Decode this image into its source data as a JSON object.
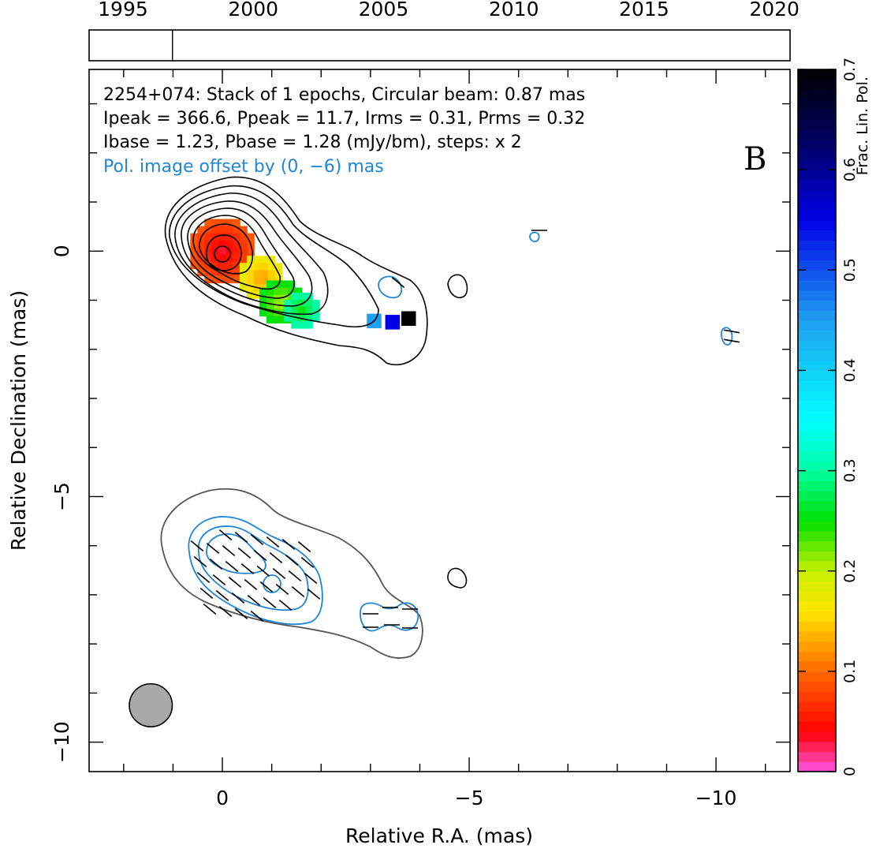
{
  "chart_data": {
    "type": "heatmap",
    "title": "",
    "annotations": {
      "line1": "2254+074: Stack of 1 epochs, Circular beam: 0.87 mas",
      "line2": "Ipeak = 366.6, Ppeak = 11.7, Irms = 0.31, Prms = 0.32",
      "line3": "Ibase = 1.23, Pbase = 1.28 (mJy/bm), steps: x 2",
      "line4": "Pol. image offset by (0, −6) mas",
      "panel_letter": "B"
    },
    "xlabel": "Relative R.A. (mas)",
    "ylabel": "Relative Declination (mas)",
    "xlim": [
      2.7,
      -11.5
    ],
    "ylim": [
      -10.6,
      3.7
    ],
    "x_ticks": [
      {
        "value": 0,
        "label": "0"
      },
      {
        "value": -5,
        "label": "−5"
      },
      {
        "value": -10,
        "label": "−10"
      }
    ],
    "y_ticks": [
      {
        "value": 0,
        "label": "0"
      },
      {
        "value": -5,
        "label": "−5"
      },
      {
        "value": -10,
        "label": "−10"
      }
    ],
    "timeline": {
      "range": [
        1993.7,
        2020.6
      ],
      "ticks": [
        {
          "value": 1995,
          "label": "1995"
        },
        {
          "value": 2000,
          "label": "2000"
        },
        {
          "value": 2005,
          "label": "2005"
        },
        {
          "value": 2010,
          "label": "2010"
        },
        {
          "value": 2015,
          "label": "2015"
        },
        {
          "value": 2020,
          "label": "2020"
        }
      ],
      "epochs": [
        1996.9
      ]
    },
    "colorbar": {
      "label": "Frac. Lin. Pol.",
      "range": [
        0,
        0.7
      ],
      "ticks": [
        {
          "value": 0,
          "label": "0"
        },
        {
          "value": 0.1,
          "label": "0.1"
        },
        {
          "value": 0.2,
          "label": "0.2"
        },
        {
          "value": 0.3,
          "label": "0.3"
        },
        {
          "value": 0.4,
          "label": "0.4"
        },
        {
          "value": 0.5,
          "label": "0.5"
        },
        {
          "value": 0.6,
          "label": "0.6"
        },
        {
          "value": 0.7,
          "label": "0.7"
        }
      ]
    },
    "beam": {
      "ra": 1.45,
      "dec": -9.25,
      "diameter": 0.87
    },
    "core": {
      "ra": 0,
      "dec": 0
    },
    "fpol_regions": [
      {
        "ra": 0,
        "dec": 0,
        "size": 1.3,
        "value": 0.03
      },
      {
        "ra": -0.8,
        "dec": -0.55,
        "size": 0.9,
        "value": 0.12
      },
      {
        "ra": -1.2,
        "dec": -1.05,
        "size": 0.9,
        "value": 0.2
      },
      {
        "ra": -1.6,
        "dec": -1.2,
        "size": 0.7,
        "value": 0.25
      },
      {
        "ra": -3.1,
        "dec": -1.45,
        "size": 0.35,
        "value": 0.45
      },
      {
        "ra": -3.45,
        "dec": -1.45,
        "size": 0.3,
        "value": 0.55
      },
      {
        "ra": -3.8,
        "dec": -1.4,
        "size": 0.35,
        "value": 0.7
      }
    ]
  }
}
